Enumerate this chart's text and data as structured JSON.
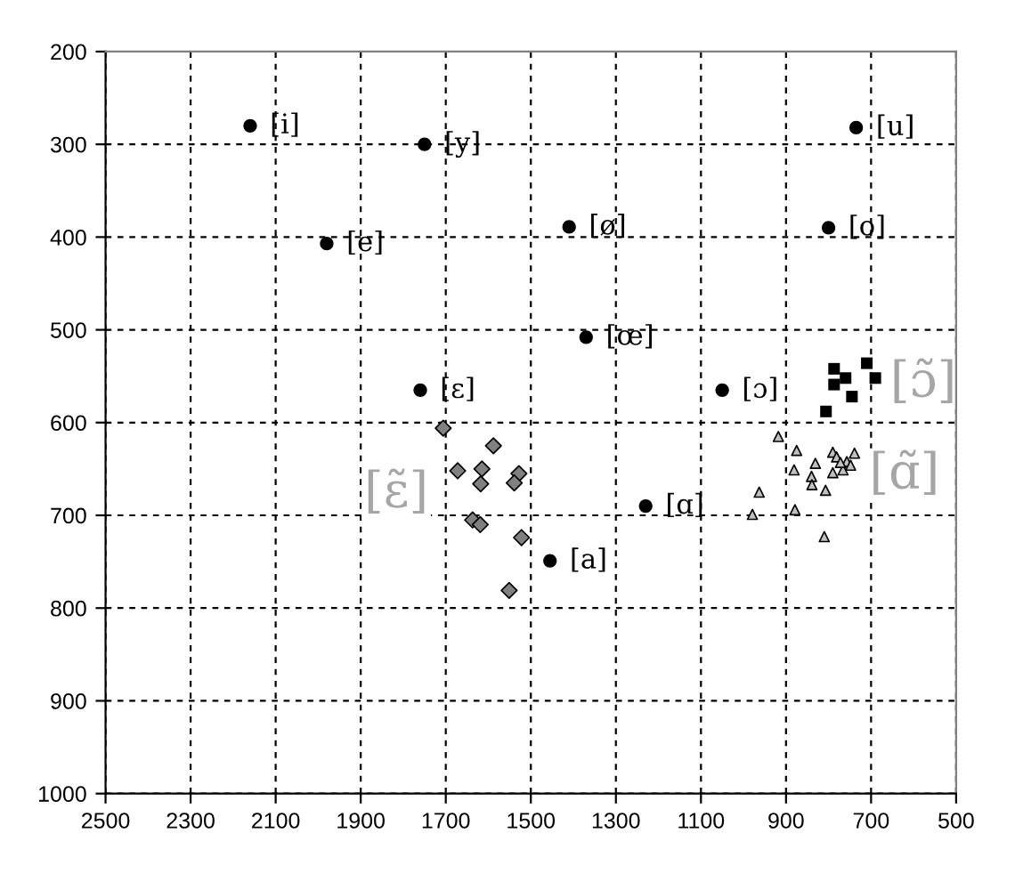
{
  "chart_data": {
    "type": "scatter",
    "xlim": [
      2500,
      500
    ],
    "ylim": [
      1000,
      200
    ],
    "xticks": [
      2500,
      2300,
      2100,
      1900,
      1700,
      1500,
      1300,
      1100,
      900,
      700,
      500
    ],
    "yticks": [
      200,
      300,
      400,
      500,
      600,
      700,
      800,
      900,
      1000
    ],
    "grid": true,
    "series": [
      {
        "color": "#000000",
        "marker": "circle",
        "x": [
          2160,
          1750,
          735,
          1980,
          1410,
          800,
          1370,
          1760,
          1050,
          1230,
          1455
        ],
        "values": [
          280,
          300,
          282,
          407,
          389,
          390,
          508,
          565,
          565,
          690,
          749
        ],
        "value_labels": [
          "[i]",
          "[y]",
          "[u]",
          "[e]",
          "[ø]",
          "[o]",
          "[œ]",
          "[ɛ]",
          "[ɔ]",
          "[ɑ]",
          "[a]"
        ]
      },
      {
        "name": "[ɛ̃]",
        "color": "#808080",
        "marker": "diamond",
        "x": [
          1706,
          1588,
          1672,
          1615,
          1618,
          1528,
          1539,
          1637,
          1619,
          1522,
          1551
        ],
        "values": [
          606,
          625,
          652,
          650,
          666,
          655,
          665,
          705,
          710,
          724,
          781
        ]
      },
      {
        "name": "[ɔ̃]",
        "color": "#000000",
        "marker": "square",
        "x": [
          787,
          787,
          760,
          710,
          690,
          745,
          806
        ],
        "values": [
          542,
          559,
          552,
          536,
          552,
          572,
          588
        ]
      },
      {
        "name": "[ɑ̃]",
        "color": "#c0c0c0",
        "marker": "triangle",
        "x": [
          918,
          875,
          881,
          831,
          840,
          839,
          807,
          963,
          979,
          879,
          810,
          790,
          781,
          790,
          766,
          757,
          739,
          748,
          772
        ],
        "values": [
          615,
          630,
          651,
          644,
          658,
          667,
          673,
          675,
          699,
          694,
          723,
          632,
          637,
          654,
          651,
          642,
          633,
          646,
          643
        ]
      }
    ]
  }
}
